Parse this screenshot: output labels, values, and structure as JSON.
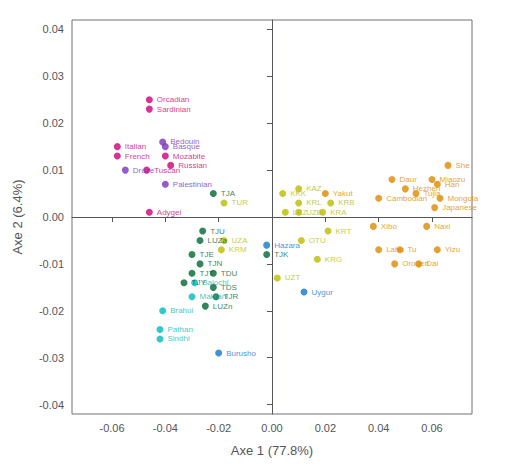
{
  "chart_data": {
    "type": "scatter",
    "xlabel": "Axe 1 (77.8%)",
    "ylabel": "Axe 2 (6.4%)",
    "annotations": [
      "Orcadian",
      "Sardinian",
      "Italian",
      "French",
      "Druze",
      "Tuscan",
      "Bedouin",
      "Basque",
      "Mozabite",
      "Russian",
      "Palestinian",
      "Adygei",
      "TJA",
      "TUR",
      "TJU",
      "LUZa",
      "UZA",
      "KRM",
      "TJE",
      "TJN",
      "TJT",
      "TDU",
      "TDS",
      "TJY",
      "Balochi",
      "Makrani",
      "TJR",
      "LUZn",
      "Brahui",
      "Pathan",
      "Sindhi",
      "Burusho",
      "Hazara",
      "TJK",
      "UZT",
      "Uygur",
      "KKK",
      "KAZ",
      "KRL",
      "LKZ",
      "UZB",
      "OTU",
      "KRG",
      "Yakut",
      "KRB",
      "KRA",
      "KRT",
      "She",
      "Daur",
      "Miaozu",
      "Han",
      "Hezhen",
      "Tujia",
      "Cambodian",
      "Mongola",
      "Japanese",
      "Xibo",
      "Naxi",
      "Lahu",
      "Tu",
      "Yizu",
      "Oroqen",
      "Dai"
    ],
    "x": [
      -0.046,
      -0.046,
      -0.058,
      -0.058,
      -0.055,
      -0.047,
      -0.041,
      -0.04,
      -0.04,
      -0.038,
      -0.04,
      -0.046,
      -0.022,
      -0.018,
      -0.026,
      -0.027,
      -0.018,
      -0.019,
      -0.03,
      -0.027,
      -0.03,
      -0.022,
      -0.022,
      -0.033,
      -0.029,
      -0.03,
      -0.021,
      -0.025,
      -0.041,
      -0.042,
      -0.042,
      -0.02,
      -0.002,
      -0.002,
      0.002,
      0.012,
      0.004,
      0.01,
      0.01,
      0.005,
      0.01,
      0.011,
      0.017,
      0.02,
      0.022,
      0.019,
      0.021,
      0.066,
      0.045,
      0.06,
      0.062,
      0.05,
      0.054,
      0.04,
      0.063,
      0.061,
      0.038,
      0.058,
      0.04,
      0.048,
      0.062,
      0.046,
      0.055
    ],
    "values": [
      0.025,
      0.023,
      0.015,
      0.013,
      0.01,
      0.01,
      0.016,
      0.015,
      0.013,
      0.011,
      0.007,
      0.001,
      0.005,
      0.003,
      -0.003,
      -0.005,
      -0.005,
      -0.007,
      -0.008,
      -0.01,
      -0.012,
      -0.012,
      -0.015,
      -0.014,
      -0.014,
      -0.017,
      -0.017,
      -0.019,
      -0.02,
      -0.024,
      -0.026,
      -0.029,
      -0.006,
      -0.008,
      -0.013,
      -0.016,
      0.005,
      0.006,
      0.003,
      0.001,
      0.001,
      -0.005,
      -0.009,
      0.005,
      0.003,
      0.001,
      -0.003,
      0.011,
      0.008,
      0.008,
      0.007,
      0.006,
      0.005,
      0.004,
      0.004,
      0.002,
      -0.002,
      -0.002,
      -0.007,
      -0.007,
      -0.007,
      -0.01,
      -0.01
    ],
    "colors": [
      "#CC0077",
      "#CC0077",
      "#CC0077",
      "#CC0077",
      "#7733BB",
      "#CC0077",
      "#7733BB",
      "#7733BB",
      "#CC0077",
      "#CC0077",
      "#7733BB",
      "#CC0077",
      "#006633",
      "#BBBB00",
      "#006633",
      "#006633",
      "#BBBB00",
      "#BBBB00",
      "#006633",
      "#006633",
      "#006633",
      "#006633",
      "#006633",
      "#006633",
      "#00BBBB",
      "#00BBBB",
      "#006633",
      "#006633",
      "#00BBBB",
      "#00BBBB",
      "#00BBBB",
      "#1177CC",
      "#1177CC",
      "#006633",
      "#BBBB00",
      "#1177CC",
      "#BBBB00",
      "#BBBB00",
      "#BBBB00",
      "#BBBB00",
      "#BBBB00",
      "#BBBB00",
      "#BBBB00",
      "#DD8800",
      "#BBBB00",
      "#BBBB00",
      "#BBBB00",
      "#DD8800",
      "#DD8800",
      "#DD8800",
      "#DD8800",
      "#DD8800",
      "#DD8800",
      "#DD8800",
      "#DD8800",
      "#DD8800",
      "#DD8800",
      "#DD8800",
      "#DD8800",
      "#DD8800",
      "#DD8800",
      "#DD8800",
      "#DD8800"
    ],
    "xlim": [
      -0.075,
      0.075
    ],
    "ylim": [
      -0.042,
      0.042
    ],
    "xticks": [
      -0.06,
      -0.04,
      -0.02,
      {
        "value": 0,
        "label": "0.00"
      },
      0.02,
      0.04,
      0.06
    ],
    "yticks": [
      -0.04,
      -0.03,
      -0.02,
      -0.01,
      {
        "value": 0,
        "label": "0.00"
      },
      0.01,
      0.02,
      0.03,
      0.04
    ],
    "grid": false
  }
}
